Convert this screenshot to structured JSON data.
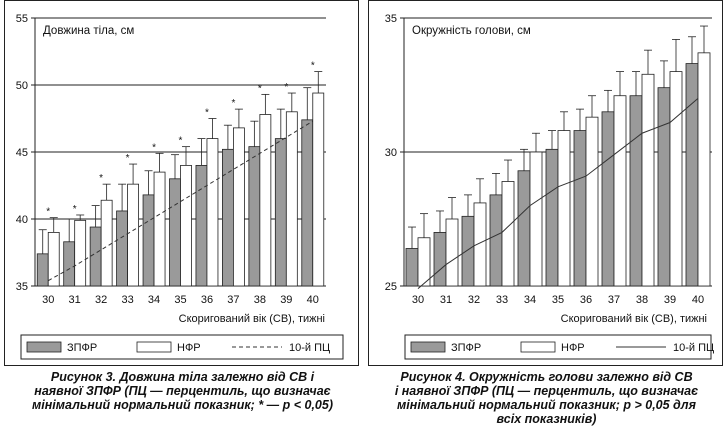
{
  "chart_data": [
    {
      "type": "bar",
      "title": "Довжина тіла, см",
      "xlabel": "Скоригований вік (СВ), тижні",
      "ylabel": "",
      "ylim": [
        35,
        55
      ],
      "yticks": [
        "35",
        "40",
        "45",
        "50",
        "55"
      ],
      "categories": [
        "30",
        "31",
        "32",
        "33",
        "34",
        "35",
        "36",
        "37",
        "38",
        "39",
        "40"
      ],
      "grid": "horizontal lines at 40, 45, 50 and 55",
      "legend_position": "bottom",
      "series": [
        {
          "name": "ЗПФР",
          "color": "#9a9a9a",
          "values": [
            37.4,
            38.3,
            39.4,
            40.6,
            41.8,
            43.0,
            44.0,
            45.2,
            45.4,
            46.0,
            47.4
          ],
          "error_upper": [
            39.2,
            40.0,
            41.0,
            42.6,
            43.6,
            44.8,
            46.0,
            47.0,
            47.3,
            48.2,
            49.8
          ]
        },
        {
          "name": "НФР",
          "color": "#ffffff",
          "values": [
            39.0,
            39.9,
            41.4,
            42.6,
            43.5,
            44.0,
            46.0,
            46.8,
            47.8,
            48.0,
            49.4
          ],
          "error_upper": [
            40.1,
            40.3,
            42.6,
            44.1,
            44.9,
            45.4,
            47.5,
            48.2,
            49.3,
            49.4,
            51.0
          ]
        }
      ],
      "reference_line": {
        "name": "10-й ПЦ",
        "style": "dashed",
        "values": [
          35.4,
          36.5,
          37.7,
          38.9,
          40.1,
          41.3,
          42.5,
          43.7,
          44.9,
          46.1,
          47.3
        ]
      },
      "significance_marks": [
        "*",
        "*",
        "*",
        "*",
        "*",
        "*",
        "*",
        "*",
        "*",
        "*",
        "*"
      ]
    },
    {
      "type": "bar",
      "title": "Окружність голови, см",
      "xlabel": "Скоригований вік (СВ), тижні",
      "ylabel": "",
      "ylim": [
        25,
        35
      ],
      "yticks": [
        "25",
        "30",
        "35"
      ],
      "categories": [
        "30",
        "31",
        "32",
        "33",
        "34",
        "35",
        "36",
        "37",
        "38",
        "39",
        "40"
      ],
      "grid": "horizontal lines at 30 and 35",
      "legend_position": "bottom",
      "series": [
        {
          "name": "ЗПФР",
          "color": "#9a9a9a",
          "values": [
            26.4,
            27.0,
            27.6,
            28.4,
            29.3,
            30.1,
            30.8,
            31.5,
            32.1,
            32.4,
            33.3
          ],
          "error_upper": [
            27.2,
            27.8,
            28.4,
            29.2,
            30.1,
            30.8,
            31.6,
            32.3,
            33.0,
            33.4,
            34.3
          ]
        },
        {
          "name": "НФР",
          "color": "#ffffff",
          "values": [
            26.8,
            27.5,
            28.1,
            28.9,
            30.0,
            30.8,
            31.3,
            32.1,
            32.9,
            33.0,
            33.7
          ],
          "error_upper": [
            27.7,
            28.3,
            29.0,
            29.7,
            30.7,
            31.5,
            32.1,
            33.0,
            33.8,
            34.2,
            34.7
          ]
        }
      ],
      "reference_line": {
        "name": "10-й ПЦ",
        "style": "solid",
        "values": [
          24.9,
          25.8,
          26.5,
          27.0,
          28.0,
          28.7,
          29.1,
          29.9,
          30.7,
          31.1,
          32.0
        ]
      }
    }
  ],
  "captions": {
    "left": [
      "Рисунок 3. Довжина тіла залежно від СВ і",
      "наявної ЗПФР (ПЦ — перцентиль, що визначає",
      "мінімальний нормальний показник; * — р < 0,05)"
    ],
    "right": [
      "Рисунок 4. Окружність голови залежно від СВ",
      "і наявної ЗПФР (ПЦ — перцентиль, що визначає",
      "мінімальний нормальний показник; р > 0,05 для",
      "всіх показників)"
    ]
  }
}
